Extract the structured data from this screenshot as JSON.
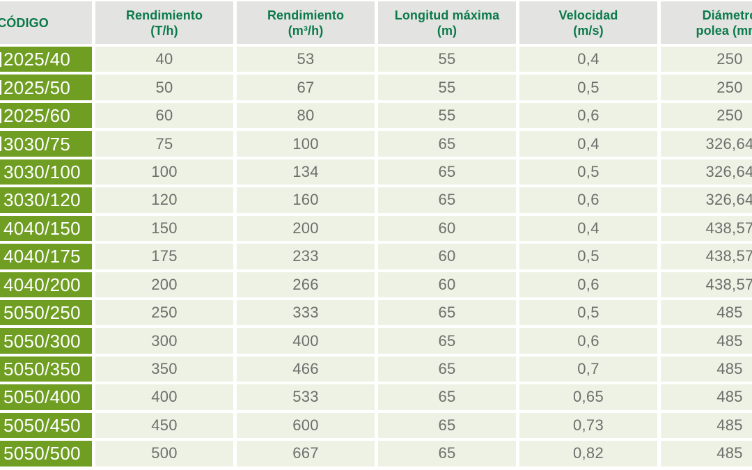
{
  "table": {
    "columns": [
      {
        "id": "codigo",
        "line1": "CÓDIGO",
        "line2": ""
      },
      {
        "id": "rend_th",
        "line1": "Rendimiento",
        "line2": "(T/h)"
      },
      {
        "id": "rend_m3h",
        "line1": "Rendimiento",
        "line2": "(m³/h)"
      },
      {
        "id": "longitud",
        "line1": "Longitud máxima",
        "line2": "(m)"
      },
      {
        "id": "velocidad",
        "line1": "Velocidad",
        "line2": "(m/s)"
      },
      {
        "id": "diametro",
        "line1": "Diámetro",
        "line2": "polea (mm)"
      }
    ],
    "rows": [
      {
        "codigo": "2025/40",
        "prefix_clipped": true,
        "rend_th": "40",
        "rend_m3h": "53",
        "longitud": "55",
        "velocidad": "0,4",
        "diametro": "250"
      },
      {
        "codigo": "2025/50",
        "prefix_clipped": true,
        "rend_th": "50",
        "rend_m3h": "67",
        "longitud": "55",
        "velocidad": "0,5",
        "diametro": "250"
      },
      {
        "codigo": "2025/60",
        "prefix_clipped": true,
        "rend_th": "60",
        "rend_m3h": "80",
        "longitud": "55",
        "velocidad": "0,6",
        "diametro": "250"
      },
      {
        "codigo": "3030/75",
        "prefix_clipped": true,
        "rend_th": "75",
        "rend_m3h": "100",
        "longitud": "65",
        "velocidad": "0,4",
        "diametro": "326,64"
      },
      {
        "codigo": "3030/100",
        "prefix_clipped": false,
        "rend_th": "100",
        "rend_m3h": "134",
        "longitud": "65",
        "velocidad": "0,5",
        "diametro": "326,64"
      },
      {
        "codigo": "3030/120",
        "prefix_clipped": false,
        "rend_th": "120",
        "rend_m3h": "160",
        "longitud": "65",
        "velocidad": "0,6",
        "diametro": "326,64"
      },
      {
        "codigo": "4040/150",
        "prefix_clipped": false,
        "rend_th": "150",
        "rend_m3h": "200",
        "longitud": "60",
        "velocidad": "0,4",
        "diametro": "438,57"
      },
      {
        "codigo": "4040/175",
        "prefix_clipped": false,
        "rend_th": "175",
        "rend_m3h": "233",
        "longitud": "60",
        "velocidad": "0,5",
        "diametro": "438,57"
      },
      {
        "codigo": "4040/200",
        "prefix_clipped": false,
        "rend_th": "200",
        "rend_m3h": "266",
        "longitud": "60",
        "velocidad": "0,6",
        "diametro": "438,57"
      },
      {
        "codigo": "5050/250",
        "prefix_clipped": false,
        "rend_th": "250",
        "rend_m3h": "333",
        "longitud": "65",
        "velocidad": "0,5",
        "diametro": "485"
      },
      {
        "codigo": "5050/300",
        "prefix_clipped": false,
        "rend_th": "300",
        "rend_m3h": "400",
        "longitud": "65",
        "velocidad": "0,6",
        "diametro": "485"
      },
      {
        "codigo": "5050/350",
        "prefix_clipped": false,
        "rend_th": "350",
        "rend_m3h": "466",
        "longitud": "65",
        "velocidad": "0,7",
        "diametro": "485"
      },
      {
        "codigo": "5050/400",
        "prefix_clipped": false,
        "rend_th": "400",
        "rend_m3h": "533",
        "longitud": "65",
        "velocidad": "0,65",
        "diametro": "485"
      },
      {
        "codigo": "5050/450",
        "prefix_clipped": false,
        "rend_th": "450",
        "rend_m3h": "600",
        "longitud": "65",
        "velocidad": "0,73",
        "diametro": "485"
      },
      {
        "codigo": "5050/500",
        "prefix_clipped": false,
        "rend_th": "500",
        "rend_m3h": "667",
        "longitud": "65",
        "velocidad": "0,82",
        "diametro": "485"
      }
    ]
  },
  "colors": {
    "header_background": "#e3e3e2",
    "header_text_green": "#0b7a49",
    "code_cell_green": "#6f9e23",
    "code_text": "#ffffff",
    "data_cell_background": "#eef2e4",
    "data_text_grey": "#6e6e6c",
    "gap_white": "#ffffff"
  }
}
